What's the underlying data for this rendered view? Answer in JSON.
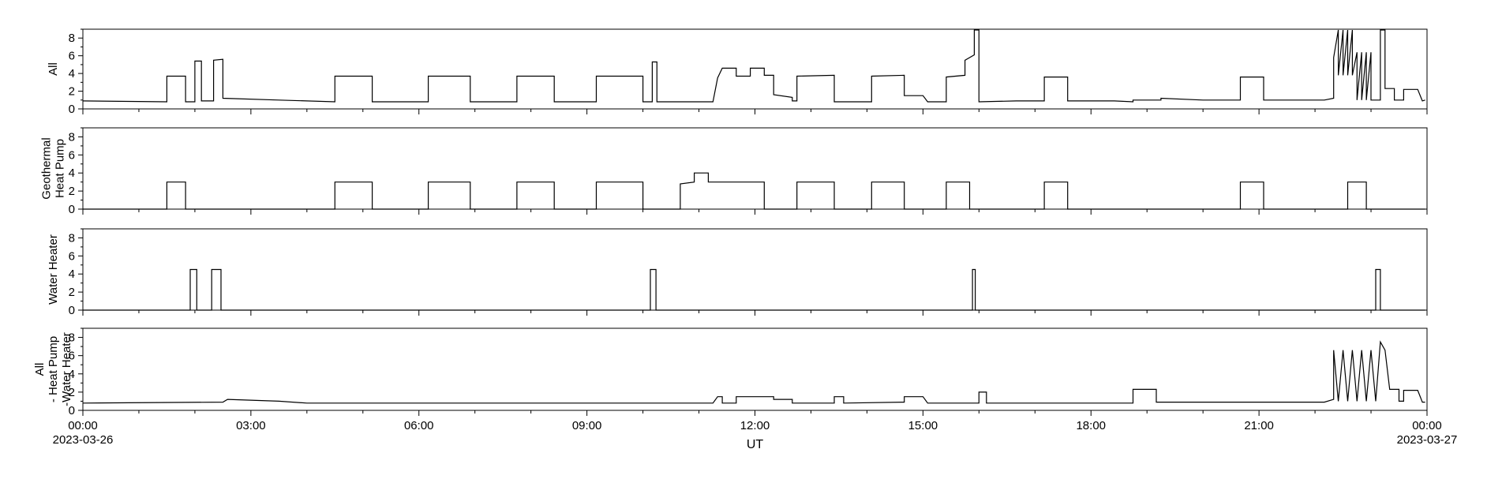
{
  "chart_data": {
    "type": "line",
    "xlabel": "UT",
    "x_start_label": "00:00",
    "x_start_date": "2023-03-26",
    "x_end_label": "00:00",
    "x_end_date": "2023-03-27",
    "x_range": [
      "2023-03-26 00:00",
      "2023-03-27 00:00"
    ],
    "x_ticks": [
      "00:00",
      "03:00",
      "06:00",
      "09:00",
      "12:00",
      "15:00",
      "18:00",
      "21:00",
      "00:00"
    ],
    "grid": false,
    "legend": "none",
    "line_color": "#000000",
    "panels": [
      {
        "label_lines": [
          "All"
        ],
        "ylim": [
          0,
          9
        ],
        "y_ticks": [
          "0",
          "2",
          "4",
          "6",
          "8"
        ],
        "points": [
          [
            "00:00",
            0.9
          ],
          [
            "01:30",
            0.8
          ],
          [
            "01:30",
            3.7
          ],
          [
            "01:50",
            3.7
          ],
          [
            "01:50",
            0.8
          ],
          [
            "02:00",
            0.8
          ],
          [
            "02:00",
            5.4
          ],
          [
            "02:07",
            5.4
          ],
          [
            "02:07",
            0.9
          ],
          [
            "02:20",
            0.9
          ],
          [
            "02:20",
            5.5
          ],
          [
            "02:30",
            5.6
          ],
          [
            "02:30",
            1.2
          ],
          [
            "03:30",
            1.0
          ],
          [
            "04:30",
            0.8
          ],
          [
            "04:30",
            3.7
          ],
          [
            "05:10",
            3.7
          ],
          [
            "05:10",
            0.8
          ],
          [
            "06:10",
            0.8
          ],
          [
            "06:10",
            3.7
          ],
          [
            "06:55",
            3.7
          ],
          [
            "06:55",
            0.8
          ],
          [
            "07:45",
            0.8
          ],
          [
            "07:45",
            3.7
          ],
          [
            "08:25",
            3.7
          ],
          [
            "08:25",
            0.8
          ],
          [
            "09:10",
            0.8
          ],
          [
            "09:10",
            3.7
          ],
          [
            "10:00",
            3.7
          ],
          [
            "10:00",
            0.8
          ],
          [
            "10:10",
            0.8
          ],
          [
            "10:10",
            5.3
          ],
          [
            "10:15",
            5.3
          ],
          [
            "10:15",
            0.8
          ],
          [
            "10:40",
            0.8
          ],
          [
            "11:15",
            0.8
          ],
          [
            "11:20",
            3.5
          ],
          [
            "11:25",
            4.6
          ],
          [
            "11:40",
            4.6
          ],
          [
            "11:40",
            3.7
          ],
          [
            "11:55",
            3.7
          ],
          [
            "11:55",
            4.6
          ],
          [
            "12:10",
            4.6
          ],
          [
            "12:10",
            3.8
          ],
          [
            "12:20",
            3.8
          ],
          [
            "12:20",
            1.6
          ],
          [
            "12:40",
            1.3
          ],
          [
            "12:40",
            0.9
          ],
          [
            "12:45",
            0.9
          ],
          [
            "12:45",
            3.7
          ],
          [
            "13:25",
            3.8
          ],
          [
            "13:25",
            0.8
          ],
          [
            "13:35",
            0.8
          ],
          [
            "14:05",
            0.8
          ],
          [
            "14:05",
            3.7
          ],
          [
            "14:40",
            3.8
          ],
          [
            "14:40",
            1.5
          ],
          [
            "15:00",
            1.5
          ],
          [
            "15:05",
            0.8
          ],
          [
            "15:25",
            0.8
          ],
          [
            "15:25",
            3.6
          ],
          [
            "15:45",
            3.8
          ],
          [
            "15:45",
            5.5
          ],
          [
            "15:55",
            6.1
          ],
          [
            "15:55",
            9.2
          ],
          [
            "16:00",
            9.2
          ],
          [
            "16:00",
            0.8
          ],
          [
            "16:40",
            0.9
          ],
          [
            "17:10",
            0.9
          ],
          [
            "17:10",
            3.6
          ],
          [
            "17:35",
            3.6
          ],
          [
            "17:35",
            0.9
          ],
          [
            "18:25",
            0.9
          ],
          [
            "18:45",
            0.8
          ],
          [
            "18:45",
            1.0
          ],
          [
            "19:15",
            1.0
          ],
          [
            "19:15",
            1.2
          ],
          [
            "20:00",
            1.0
          ],
          [
            "20:40",
            1.0
          ],
          [
            "20:40",
            3.6
          ],
          [
            "21:05",
            3.6
          ],
          [
            "21:05",
            1.0
          ],
          [
            "22:10",
            1.0
          ],
          [
            "22:20",
            1.2
          ],
          [
            "22:20",
            5.8
          ],
          [
            "22:25",
            9.2
          ],
          [
            "22:25",
            3.8
          ],
          [
            "22:30",
            9.2
          ],
          [
            "22:30",
            3.8
          ],
          [
            "22:35",
            9.2
          ],
          [
            "22:35",
            3.8
          ],
          [
            "22:40",
            9.2
          ],
          [
            "22:40",
            3.8
          ],
          [
            "22:45",
            6.4
          ],
          [
            "22:45",
            1.0
          ],
          [
            "22:50",
            6.4
          ],
          [
            "22:50",
            1.0
          ],
          [
            "22:55",
            6.4
          ],
          [
            "22:55",
            1.0
          ],
          [
            "23:00",
            6.4
          ],
          [
            "23:00",
            1.0
          ],
          [
            "23:10",
            1.0
          ],
          [
            "23:10",
            9.2
          ],
          [
            "23:15",
            9.2
          ],
          [
            "23:15",
            2.3
          ],
          [
            "23:25",
            2.3
          ],
          [
            "23:25",
            1.0
          ],
          [
            "23:35",
            1.0
          ],
          [
            "23:35",
            2.2
          ],
          [
            "23:50",
            2.2
          ],
          [
            "23:55",
            0.9
          ],
          [
            "23:58",
            1.0
          ]
        ]
      },
      {
        "label_lines": [
          "Geothermal",
          "Heat Pump"
        ],
        "ylim": [
          0,
          9
        ],
        "y_ticks": [
          "0",
          "2",
          "4",
          "6",
          "8"
        ],
        "points": [
          [
            "00:00",
            0.0
          ],
          [
            "01:30",
            0.0
          ],
          [
            "01:30",
            3.0
          ],
          [
            "01:50",
            3.0
          ],
          [
            "01:50",
            0.0
          ],
          [
            "04:30",
            0.0
          ],
          [
            "04:30",
            3.0
          ],
          [
            "05:10",
            3.0
          ],
          [
            "05:10",
            0.0
          ],
          [
            "06:10",
            0.0
          ],
          [
            "06:10",
            3.0
          ],
          [
            "06:55",
            3.0
          ],
          [
            "06:55",
            0.0
          ],
          [
            "07:45",
            0.0
          ],
          [
            "07:45",
            3.0
          ],
          [
            "08:25",
            3.0
          ],
          [
            "08:25",
            0.0
          ],
          [
            "09:10",
            0.0
          ],
          [
            "09:10",
            3.0
          ],
          [
            "10:00",
            3.0
          ],
          [
            "10:00",
            0.0
          ],
          [
            "10:40",
            0.0
          ],
          [
            "10:40",
            2.8
          ],
          [
            "10:55",
            3.0
          ],
          [
            "10:55",
            4.0
          ],
          [
            "11:10",
            4.0
          ],
          [
            "11:10",
            3.0
          ],
          [
            "12:10",
            3.0
          ],
          [
            "12:10",
            0.0
          ],
          [
            "12:45",
            0.0
          ],
          [
            "12:45",
            3.0
          ],
          [
            "13:25",
            3.0
          ],
          [
            "13:25",
            0.0
          ],
          [
            "14:05",
            0.0
          ],
          [
            "14:05",
            3.0
          ],
          [
            "14:40",
            3.0
          ],
          [
            "14:40",
            0.0
          ],
          [
            "15:25",
            0.0
          ],
          [
            "15:25",
            3.0
          ],
          [
            "15:50",
            3.0
          ],
          [
            "15:50",
            0.0
          ],
          [
            "17:10",
            0.0
          ],
          [
            "17:10",
            3.0
          ],
          [
            "17:35",
            3.0
          ],
          [
            "17:35",
            0.0
          ],
          [
            "20:40",
            0.0
          ],
          [
            "20:40",
            3.0
          ],
          [
            "21:05",
            3.0
          ],
          [
            "21:05",
            0.0
          ],
          [
            "22:35",
            0.0
          ],
          [
            "22:35",
            3.0
          ],
          [
            "22:55",
            3.0
          ],
          [
            "22:55",
            0.0
          ],
          [
            "23:58",
            0.0
          ]
        ]
      },
      {
        "label_lines": [
          "Water Heater"
        ],
        "ylim": [
          0,
          9
        ],
        "y_ticks": [
          "0",
          "2",
          "4",
          "6",
          "8"
        ],
        "points": [
          [
            "00:00",
            0.0
          ],
          [
            "01:55",
            0.0
          ],
          [
            "01:55",
            4.5
          ],
          [
            "02:02",
            4.5
          ],
          [
            "02:02",
            0.0
          ],
          [
            "02:18",
            0.0
          ],
          [
            "02:18",
            4.5
          ],
          [
            "02:28",
            4.5
          ],
          [
            "02:28",
            0.0
          ],
          [
            "10:08",
            0.0
          ],
          [
            "10:08",
            4.5
          ],
          [
            "10:14",
            4.5
          ],
          [
            "10:14",
            0.0
          ],
          [
            "15:53",
            0.0
          ],
          [
            "15:53",
            4.5
          ],
          [
            "15:56",
            4.5
          ],
          [
            "15:56",
            0.0
          ],
          [
            "23:05",
            0.0
          ],
          [
            "23:05",
            4.5
          ],
          [
            "23:10",
            4.5
          ],
          [
            "23:10",
            0.0
          ],
          [
            "23:58",
            0.0
          ]
        ]
      },
      {
        "label_lines": [
          "All",
          "- Heat Pump",
          "-Water Heater"
        ],
        "ylim": [
          0,
          9
        ],
        "y_ticks": [
          "0",
          "2",
          "4",
          "6",
          "8"
        ],
        "points": [
          [
            "00:00",
            0.8
          ],
          [
            "02:30",
            0.9
          ],
          [
            "02:35",
            1.2
          ],
          [
            "03:30",
            1.0
          ],
          [
            "04:00",
            0.8
          ],
          [
            "11:15",
            0.8
          ],
          [
            "11:20",
            1.5
          ],
          [
            "11:25",
            1.5
          ],
          [
            "11:25",
            0.8
          ],
          [
            "11:40",
            0.8
          ],
          [
            "11:40",
            1.5
          ],
          [
            "12:20",
            1.5
          ],
          [
            "12:20",
            1.2
          ],
          [
            "12:40",
            1.2
          ],
          [
            "12:40",
            0.8
          ],
          [
            "13:25",
            0.8
          ],
          [
            "13:25",
            1.5
          ],
          [
            "13:35",
            1.5
          ],
          [
            "13:35",
            0.8
          ],
          [
            "14:40",
            0.9
          ],
          [
            "14:40",
            1.5
          ],
          [
            "15:00",
            1.5
          ],
          [
            "15:05",
            0.8
          ],
          [
            "16:00",
            0.8
          ],
          [
            "16:00",
            2.0
          ],
          [
            "16:08",
            2.0
          ],
          [
            "16:08",
            0.8
          ],
          [
            "18:25",
            0.8
          ],
          [
            "18:45",
            0.8
          ],
          [
            "18:45",
            2.3
          ],
          [
            "19:10",
            2.3
          ],
          [
            "19:10",
            0.9
          ],
          [
            "20:00",
            0.9
          ],
          [
            "22:10",
            0.9
          ],
          [
            "22:20",
            1.2
          ],
          [
            "22:20",
            6.6
          ],
          [
            "22:25",
            1.0
          ],
          [
            "22:30",
            6.6
          ],
          [
            "22:35",
            1.0
          ],
          [
            "22:40",
            6.6
          ],
          [
            "22:45",
            1.0
          ],
          [
            "22:50",
            6.6
          ],
          [
            "22:55",
            1.0
          ],
          [
            "23:00",
            6.6
          ],
          [
            "23:05",
            1.0
          ],
          [
            "23:10",
            7.5
          ],
          [
            "23:15",
            6.6
          ],
          [
            "23:20",
            2.3
          ],
          [
            "23:30",
            2.3
          ],
          [
            "23:30",
            1.0
          ],
          [
            "23:35",
            1.0
          ],
          [
            "23:35",
            2.2
          ],
          [
            "23:50",
            2.2
          ],
          [
            "23:55",
            0.9
          ],
          [
            "23:58",
            0.9
          ]
        ]
      }
    ]
  }
}
